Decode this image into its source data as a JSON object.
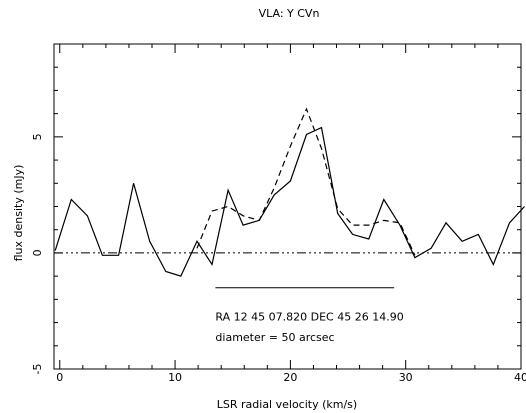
{
  "chart_data": {
    "type": "line",
    "title": "VLA: Y CVn",
    "xlabel": "LSR radial velocity (km/s)",
    "ylabel": "flux density (mJy)",
    "xlim": [
      -0.5,
      40
    ],
    "ylim": [
      -5,
      9
    ],
    "x_ticks": [
      0,
      10,
      20,
      30,
      40
    ],
    "x_tick_labels": [
      "0",
      "10",
      "20",
      "30",
      "40"
    ],
    "y_ticks": [
      -5,
      0,
      5
    ],
    "y_tick_labels": [
      "-5",
      "0",
      "5"
    ],
    "grid": false,
    "legend": null,
    "colors": {
      "axes": "#000000",
      "series": "#000000"
    },
    "series": [
      {
        "style": "solid",
        "x": [
          -0.4,
          1.0,
          2.4,
          3.7,
          5.1,
          6.4,
          7.8,
          9.2,
          10.5,
          11.9,
          13.2,
          14.6,
          15.9,
          17.3,
          18.6,
          20.0,
          21.4,
          22.7,
          24.1,
          25.4,
          26.8,
          28.1,
          29.5,
          30.8,
          32.2,
          33.5,
          34.9,
          36.3,
          37.6,
          39.0,
          40.3
        ],
        "y": [
          0.1,
          2.3,
          1.6,
          -0.1,
          -0.1,
          3.0,
          0.5,
          -0.8,
          -1.0,
          0.5,
          -0.5,
          2.7,
          1.2,
          1.4,
          2.5,
          3.1,
          5.1,
          5.4,
          1.7,
          0.8,
          0.6,
          2.3,
          1.2,
          -0.2,
          0.2,
          1.3,
          0.5,
          0.8,
          -0.5,
          1.3,
          2.0
        ]
      },
      {
        "style": "dashed",
        "x": [
          11.9,
          13.2,
          14.6,
          15.9,
          17.3,
          18.6,
          20.0,
          21.4,
          22.7,
          24.1,
          25.4,
          26.8,
          28.1,
          29.5,
          30.8
        ],
        "y": [
          0.2,
          1.8,
          2.0,
          1.6,
          1.4,
          2.8,
          4.6,
          6.2,
          4.5,
          1.9,
          1.2,
          1.2,
          1.4,
          1.3,
          -0.1
        ]
      }
    ],
    "reference_lines": [
      {
        "style": "dash-dot",
        "y": 0,
        "x_range": [
          -0.5,
          40
        ]
      },
      {
        "style": "solid",
        "y": -1.5,
        "x_range": [
          13.5,
          29.0
        ]
      }
    ],
    "annotations": {
      "position": "RA 12 45 07.820   DEC 45 26 14.90",
      "diameter": "diameter = 50 arcsec"
    },
    "annotation_positions_data": {
      "position": {
        "x": 13.5,
        "y": -2.9
      },
      "diameter": {
        "x": 13.5,
        "y": -3.8
      }
    }
  }
}
